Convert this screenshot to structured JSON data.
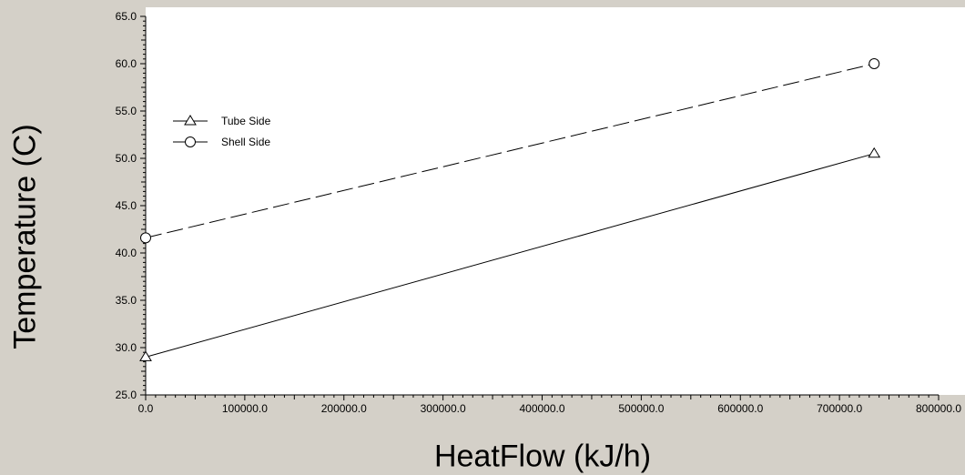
{
  "chart_data": {
    "type": "line",
    "title": "",
    "xlabel": "HeatFlow (kJ/h)",
    "ylabel": "Temperature (C)",
    "xlim": [
      0,
      800000
    ],
    "ylim": [
      25,
      65
    ],
    "x_ticks": [
      "0.0",
      "100000.0",
      "200000.0",
      "300000.0",
      "400000.0",
      "500000.0",
      "600000.0",
      "700000.0",
      "800000.0"
    ],
    "y_ticks": [
      "25.0",
      "30.0",
      "35.0",
      "40.0",
      "45.0",
      "50.0",
      "55.0",
      "60.0",
      "65.0"
    ],
    "grid": false,
    "legend_position": "top-left",
    "series": [
      {
        "name": "Tube Side",
        "marker": "triangle",
        "line_style": "solid",
        "color": "#000000",
        "x": [
          0,
          735000
        ],
        "y": [
          29.0,
          50.5
        ]
      },
      {
        "name": "Shell Side",
        "marker": "circle",
        "line_style": "dashed",
        "color": "#000000",
        "x": [
          0,
          735000
        ],
        "y": [
          41.6,
          60.0
        ]
      }
    ]
  }
}
